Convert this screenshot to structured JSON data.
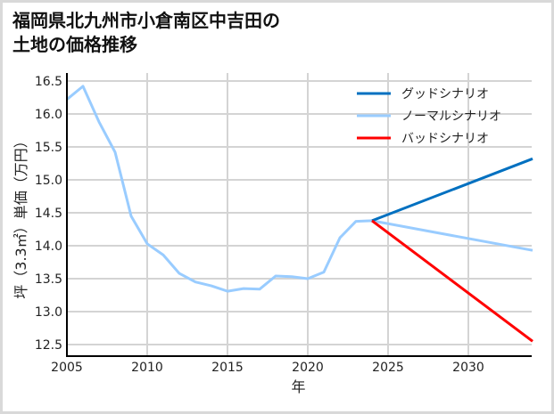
{
  "chart_data": {
    "type": "line",
    "title": "福岡県北九州市小倉南区中吉田の\n土地の価格推移",
    "xlabel": "年",
    "ylabel": "坪（3.3㎡）単価（万円）",
    "xlim": [
      2005,
      2034
    ],
    "ylim": [
      12.35,
      16.6
    ],
    "x_ticks": [
      2005,
      2010,
      2015,
      2020,
      2025,
      2030
    ],
    "y_ticks": [
      12.5,
      13.0,
      13.5,
      14.0,
      14.5,
      15.0,
      15.5,
      16.0,
      16.5
    ],
    "y_tick_labels": [
      "12.5",
      "13.0",
      "13.5",
      "14.0",
      "14.5",
      "15.0",
      "15.5",
      "16.0",
      "16.5"
    ],
    "grid": true,
    "legend_position": "upper right",
    "series": [
      {
        "name": "グッドシナリオ",
        "color": "#0070c0",
        "x": [
          2024,
          2034
        ],
        "values": [
          14.38,
          15.32
        ]
      },
      {
        "name": "ノーマルシナリオ",
        "color": "#99ccff",
        "x": [
          2005,
          2006,
          2007,
          2008,
          2009,
          2010,
          2011,
          2012,
          2013,
          2014,
          2015,
          2016,
          2017,
          2018,
          2019,
          2020,
          2021,
          2022,
          2023,
          2024,
          2034
        ],
        "values": [
          16.22,
          16.42,
          15.88,
          15.42,
          14.45,
          14.03,
          13.86,
          13.58,
          13.45,
          13.39,
          13.31,
          13.35,
          13.34,
          13.54,
          13.53,
          13.5,
          13.6,
          14.12,
          14.37,
          14.38,
          13.93
        ]
      },
      {
        "name": "バッドシナリオ",
        "color": "#ff0000",
        "x": [
          2024,
          2034
        ],
        "values": [
          14.38,
          12.55
        ]
      }
    ]
  }
}
